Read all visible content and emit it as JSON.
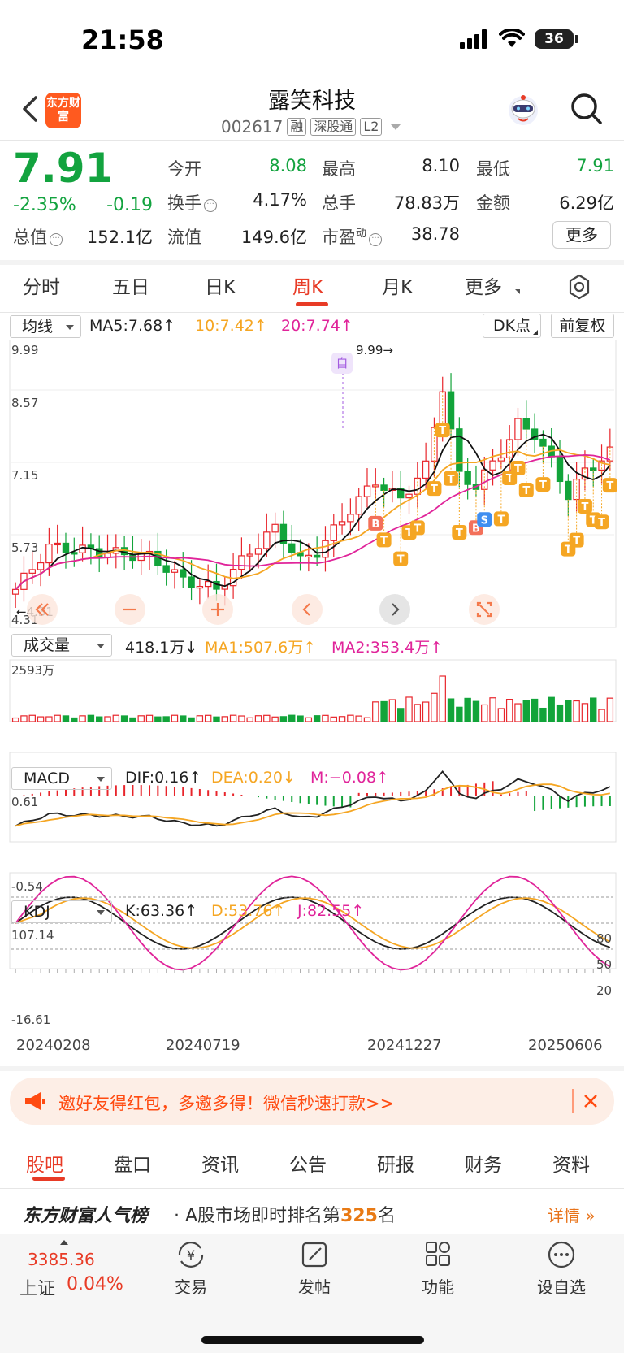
{
  "status_bar": {
    "time": "21:58",
    "battery": "36"
  },
  "header": {
    "logo_text": "东方财富",
    "stock_name": "露笑科技",
    "stock_code": "002617",
    "tags": [
      "融",
      "深股通",
      "L2"
    ]
  },
  "quote": {
    "price": "7.91",
    "change_pct": "-2.35%",
    "change_abs": "-0.19",
    "fields": [
      {
        "label": "今开",
        "value": "8.08"
      },
      {
        "label": "最高",
        "value": "8.10"
      },
      {
        "label": "最低",
        "value": "7.91"
      },
      {
        "label": "换手",
        "value": "4.17%"
      },
      {
        "label": "总手",
        "value": "78.83万"
      },
      {
        "label": "金额",
        "value": "6.29亿"
      },
      {
        "label": "总值",
        "value": "152.1亿"
      },
      {
        "label": "流值",
        "value": "149.6亿"
      },
      {
        "label": "市盈",
        "label_sup": "动",
        "value": "38.78"
      }
    ],
    "more_button": "更多"
  },
  "period_tabs": {
    "items": [
      "分时",
      "五日",
      "日K",
      "周K",
      "月K",
      "更多"
    ],
    "active": "周K"
  },
  "kline": {
    "indicator_select": "均线",
    "ma5": "MA5:7.68↑",
    "ma10": "10:7.42↑",
    "ma20": "20:7.74↑",
    "dk_button": "DK点",
    "adjust_button": "前复权",
    "y_labels": [
      "9.99",
      "8.57",
      "7.15",
      "5.73",
      "4.31"
    ],
    "high_marker": "9.99→",
    "low_marker": "←4.31",
    "self_marker": "自"
  },
  "volume": {
    "indicator_select": "成交量",
    "value": "418.1万↓",
    "ma1": "MA1:507.6万↑",
    "ma2": "MA2:353.4万↑",
    "max_label": "2593万"
  },
  "macd": {
    "indicator_select": "MACD",
    "dif": "DIF:0.16↑",
    "dea": "DEA:0.20↓",
    "m": "M:−0.08↑",
    "y_top": "0.61",
    "y_bottom": "-0.54"
  },
  "kdj": {
    "indicator_select": "KDJ",
    "k": "K:63.36↑",
    "d": "D:53.76↑",
    "j": "J:82.55↑",
    "y_top": "107.14",
    "y_bottom": "-16.61",
    "levels": [
      "80",
      "50",
      "20"
    ]
  },
  "dates": [
    "20240208",
    "20240719",
    "20241227",
    "20250606"
  ],
  "chart_data": {
    "type": "candlestick",
    "interval": "weekly",
    "ylim": [
      4.31,
      9.99
    ],
    "high_label": 9.99,
    "low_label": 4.31,
    "last_close": 7.91
  },
  "banner": {
    "text": "邀好友得红包，多邀多得！微信秒速打款>>"
  },
  "bottom_tabs": {
    "items": [
      "股吧",
      "盘口",
      "资讯",
      "公告",
      "研报",
      "财务",
      "资料"
    ],
    "active": "股吧"
  },
  "ranking": {
    "logo": "东方财富人气榜",
    "text_prefix": "· A股市场即时排名第",
    "rank": "325",
    "text_suffix": "名",
    "detail": "详情"
  },
  "bottom_nav": {
    "index_value": "3385.36",
    "index_name": "上证",
    "index_pct": "0.04%",
    "items": [
      "交易",
      "发帖",
      "功能",
      "设自选"
    ]
  }
}
